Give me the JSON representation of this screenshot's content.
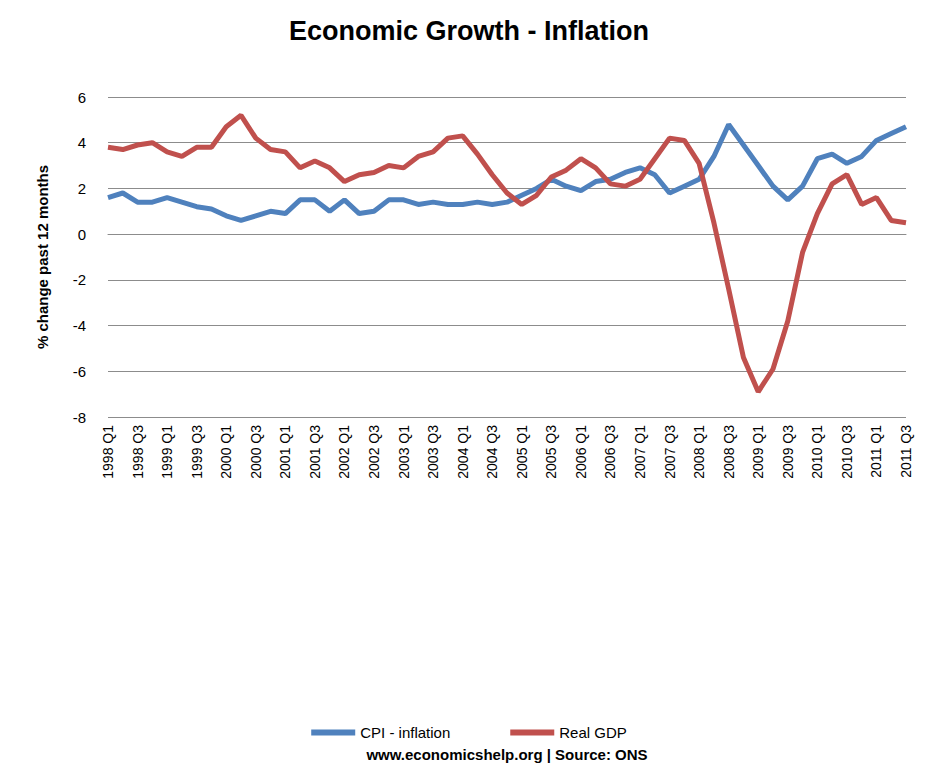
{
  "chart_data": {
    "type": "line",
    "title": "Economic Growth - Inflation",
    "x_label": "www.economicshelp.org | Source: ONS",
    "y_label": "% change past 12 months",
    "categories": [
      "1998 Q1",
      null,
      "1998 Q3",
      null,
      "1999 Q1",
      null,
      "1999 Q3",
      null,
      "2000 Q1",
      null,
      "2000 Q3",
      null,
      "2001 Q1",
      null,
      "2001 Q3",
      null,
      "2002 Q1",
      null,
      "2002 Q3",
      null,
      "2003 Q1",
      null,
      "2003 Q3",
      null,
      "2004 Q1",
      null,
      "2004 Q3",
      null,
      "2005 Q1",
      null,
      "2005 Q3",
      null,
      "2006 Q1",
      null,
      "2006 Q3",
      null,
      "2007 Q1",
      null,
      "2007 Q3",
      null,
      "2008 Q1",
      null,
      "2008 Q3",
      null,
      "2009 Q1",
      null,
      "2009 Q3",
      null,
      "2010 Q1",
      null,
      "2010 Q3",
      null,
      "2011 Q1",
      null,
      "2011 Q3"
    ],
    "series": [
      {
        "name": "CPI - inflation",
        "color": "#4f81bd",
        "values": [
          1.6,
          1.8,
          1.4,
          1.4,
          1.6,
          1.4,
          1.2,
          1.1,
          0.8,
          0.6,
          0.8,
          1.0,
          0.9,
          1.5,
          1.5,
          1.0,
          1.5,
          0.9,
          1.0,
          1.5,
          1.5,
          1.3,
          1.4,
          1.3,
          1.3,
          1.4,
          1.3,
          1.4,
          1.7,
          2.0,
          2.4,
          2.1,
          1.9,
          2.3,
          2.4,
          2.7,
          2.9,
          2.6,
          1.8,
          2.1,
          2.4,
          3.4,
          4.8,
          3.9,
          3.0,
          2.1,
          1.5,
          2.1,
          3.3,
          3.5,
          3.1,
          3.4,
          4.1,
          4.4,
          4.7
        ]
      },
      {
        "name": "Real GDP",
        "color": "#c0504d",
        "values": [
          3.8,
          3.7,
          3.9,
          4.0,
          3.6,
          3.4,
          3.8,
          3.8,
          4.7,
          5.2,
          4.2,
          3.7,
          3.6,
          2.9,
          3.2,
          2.9,
          2.3,
          2.6,
          2.7,
          3.0,
          2.9,
          3.4,
          3.6,
          4.2,
          4.3,
          3.5,
          2.6,
          1.8,
          1.3,
          1.7,
          2.5,
          2.8,
          3.3,
          2.9,
          2.2,
          2.1,
          2.4,
          3.3,
          4.2,
          4.1,
          3.1,
          0.5,
          -2.4,
          -5.4,
          -6.9,
          -5.9,
          -3.8,
          -0.8,
          0.9,
          2.2,
          2.6,
          1.3,
          1.6,
          0.6,
          0.5
        ]
      }
    ],
    "ylim": [
      -8,
      6
    ],
    "yticks": [
      -8,
      -6,
      -4,
      -2,
      0,
      2,
      4,
      6
    ],
    "grid": true,
    "legend": "bottom"
  }
}
